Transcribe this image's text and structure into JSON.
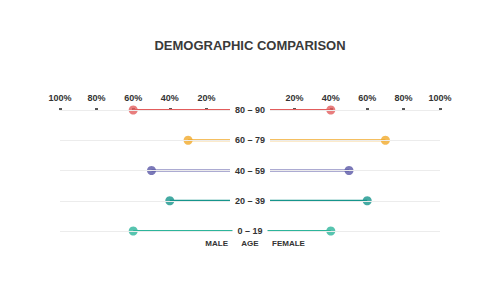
{
  "chart_data": {
    "type": "butterfly",
    "title": "DEMOGRAPHIC COMPARISON",
    "categories": [
      "80 – 90",
      "60 – 79",
      "40 – 59",
      "20 – 39",
      "0 – 19"
    ],
    "category_label": "AGE",
    "series": [
      {
        "name": "MALE",
        "values": [
          60,
          30,
          50,
          40,
          60
        ]
      },
      {
        "name": "FEMALE",
        "values": [
          40,
          70,
          50,
          60,
          40
        ]
      }
    ],
    "colors": [
      "#e25c5c",
      "#f1aa2c",
      "#5a58a6",
      "#16958c",
      "#2db59b"
    ],
    "xlim": [
      0,
      100
    ],
    "xticks": [
      {
        "value": 20,
        "label": "20%"
      },
      {
        "value": 40,
        "label": "40%"
      },
      {
        "value": 60,
        "label": "60%"
      },
      {
        "value": 80,
        "label": "80%"
      },
      {
        "value": 100,
        "label": "100%"
      }
    ],
    "grid": true,
    "marker": "circle"
  }
}
